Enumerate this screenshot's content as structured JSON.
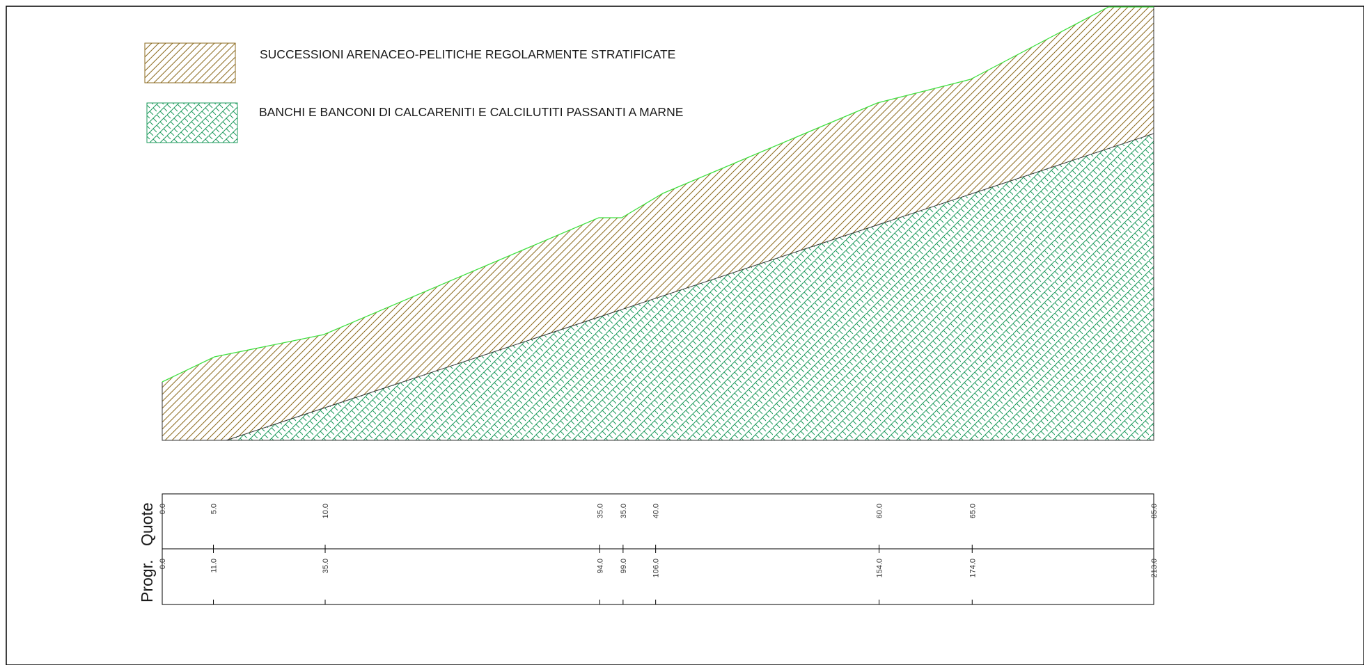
{
  "colors": {
    "frame": "#000000",
    "hatch_brown": "#8b6a1e",
    "hatch_green": "#1e9b5e",
    "ground_line": "#3fe03f",
    "contact_line": "#333333"
  },
  "legend": [
    {
      "pattern": "diagonal-hatch-brown",
      "label": "SUCCESSIONI ARENACEO-PELITICHE REGOLARMENTE STRATIFICATE"
    },
    {
      "pattern": "crosshatch-green",
      "label": "BANCHI E BANCONI DI CALCARENITI E CALCILUTITI PASSANTI A MARNE"
    }
  ],
  "profile_table": {
    "row_labels": {
      "quote": "Quote",
      "progr": "Progr."
    },
    "quote": [
      "0.0",
      "5.0",
      "10.0",
      "35.0",
      "35.0",
      "40.0",
      "60.0",
      "65.0",
      "85.0"
    ],
    "progr": [
      "0.0",
      "11.0",
      "35.0",
      "94.0",
      "99.0",
      "106.0",
      "154.0",
      "174.0",
      "213.0"
    ]
  },
  "chart_data": {
    "type": "area",
    "x": [
      0,
      11,
      35,
      94,
      99,
      106,
      154,
      174,
      213
    ],
    "ground_elevation": [
      0,
      5,
      10,
      35,
      35,
      40,
      60,
      65,
      85
    ],
    "xlim": [
      0,
      213
    ],
    "series": [
      {
        "name": "SUCCESSIONI ARENACEO-PELITICHE REGOLARMENTE STRATIFICATE",
        "pattern": "diagonal-hatch-brown"
      },
      {
        "name": "BANCHI E BANCONI DI CALCARENITI E CALCILUTITI PASSANTI A MARNE",
        "pattern": "crosshatch-green"
      }
    ],
    "grid": false
  }
}
